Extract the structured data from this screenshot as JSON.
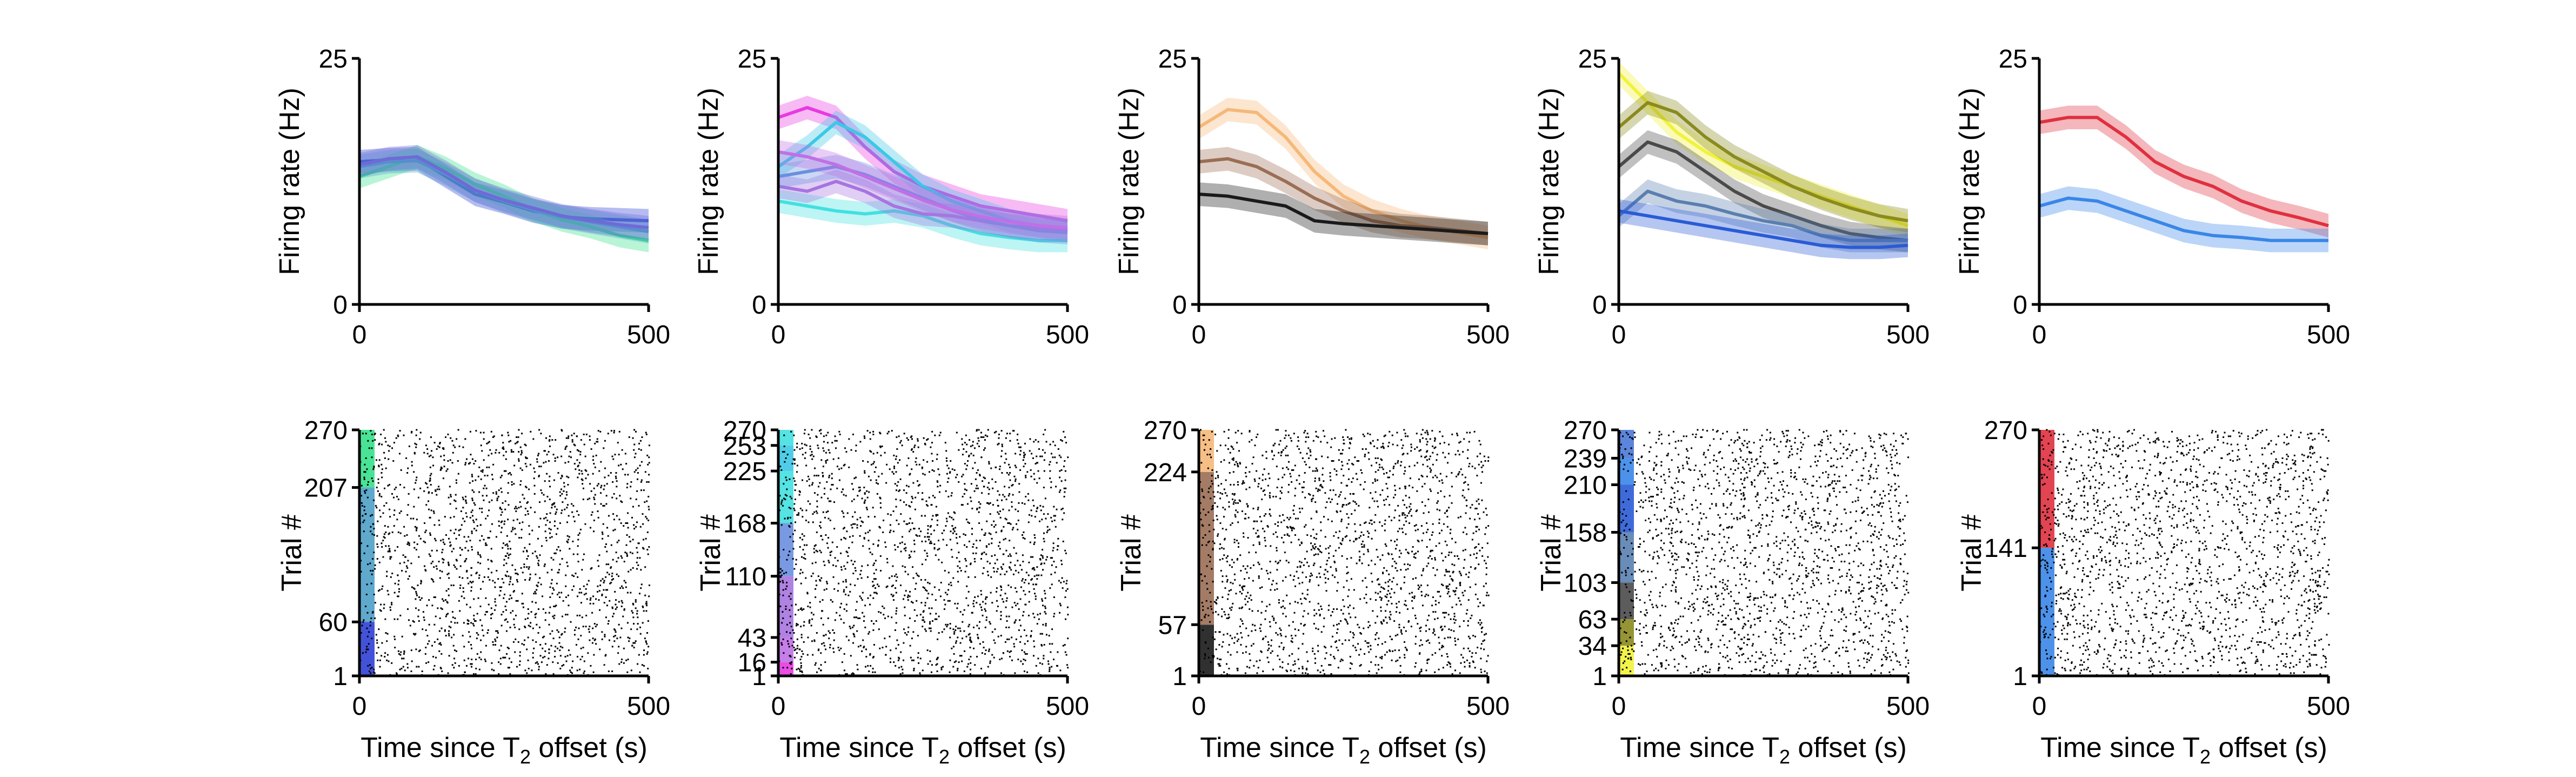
{
  "figure": {
    "background": "#ffffff",
    "axis_color": "#000000",
    "raster_color": "#000000"
  },
  "chart_data": [
    {
      "type": "line",
      "panel": "rate-1",
      "ylabel": "Firing rate (Hz)",
      "xlim": [
        0,
        500
      ],
      "ylim": [
        0,
        25
      ],
      "x_ticks": [
        "0",
        "500"
      ],
      "y_ticks": [
        "0",
        "25"
      ],
      "x": [
        0,
        50,
        100,
        150,
        200,
        250,
        300,
        350,
        400,
        450,
        500
      ],
      "series": [
        {
          "color": "#2f3fd6",
          "values": [
            14.5,
            14.7,
            14.8,
            13.0,
            11.2,
            10.4,
            9.5,
            8.9,
            8.7,
            8.6,
            8.5
          ]
        },
        {
          "color": "#35e08a",
          "values": [
            13.0,
            14.0,
            15.0,
            13.8,
            12.2,
            11.0,
            9.6,
            8.6,
            7.9,
            7.0,
            6.5
          ]
        },
        {
          "color": "#4ea0c8",
          "values": [
            14.0,
            14.5,
            14.6,
            13.2,
            11.6,
            10.5,
            9.6,
            8.9,
            8.4,
            7.9,
            7.4
          ]
        },
        {
          "color": "#6f6ad8",
          "values": [
            14.2,
            14.8,
            15.0,
            13.4,
            11.6,
            10.6,
            9.8,
            9.0,
            8.5,
            8.1,
            7.8
          ]
        }
      ]
    },
    {
      "type": "line",
      "panel": "rate-2",
      "ylabel": "Firing rate (Hz)",
      "xlim": [
        0,
        500
      ],
      "ylim": [
        0,
        25
      ],
      "x_ticks": [
        "0",
        "500"
      ],
      "y_ticks": [
        "0",
        "25"
      ],
      "x": [
        0,
        50,
        100,
        150,
        200,
        250,
        300,
        350,
        400,
        450,
        500
      ],
      "series": [
        {
          "color": "#e83ae0",
          "values": [
            19.0,
            20.0,
            19.0,
            16.0,
            13.5,
            12.0,
            11.0,
            10.0,
            9.5,
            9.0,
            8.5
          ]
        },
        {
          "color": "#3cc8e6",
          "values": [
            14.0,
            16.0,
            18.5,
            17.0,
            14.5,
            12.0,
            10.5,
            9.5,
            8.5,
            8.0,
            7.5
          ]
        },
        {
          "color": "#42e0e0",
          "values": [
            10.5,
            10.0,
            9.5,
            9.2,
            9.5,
            9.0,
            8.0,
            7.2,
            6.8,
            6.5,
            6.5
          ]
        },
        {
          "color": "#a674e0",
          "values": [
            12.0,
            11.5,
            12.5,
            11.5,
            10.0,
            9.2,
            9.0,
            8.5,
            8.0,
            7.8,
            7.5
          ]
        },
        {
          "color": "#6a8fe0",
          "values": [
            13.0,
            13.5,
            14.0,
            13.2,
            12.0,
            10.8,
            9.6,
            8.6,
            8.0,
            7.5,
            7.3
          ]
        },
        {
          "color": "#c070e6",
          "values": [
            15.5,
            15.0,
            14.2,
            13.0,
            11.8,
            10.6,
            9.6,
            8.9,
            8.4,
            8.0,
            7.8
          ]
        }
      ]
    },
    {
      "type": "line",
      "panel": "rate-3",
      "ylabel": "Firing rate (Hz)",
      "xlim": [
        0,
        500
      ],
      "ylim": [
        0,
        25
      ],
      "x_ticks": [
        "0",
        "500"
      ],
      "y_ticks": [
        "0",
        "25"
      ],
      "x": [
        0,
        50,
        100,
        150,
        200,
        250,
        300,
        350,
        400,
        450,
        500
      ],
      "series": [
        {
          "color": "#f5b879",
          "values": [
            18.0,
            19.8,
            19.5,
            17.0,
            13.5,
            11.0,
            9.5,
            8.5,
            7.8,
            7.3,
            6.8
          ]
        },
        {
          "color": "#9a6e55",
          "values": [
            14.5,
            14.8,
            14.0,
            12.5,
            10.8,
            9.5,
            8.5,
            8.0,
            7.8,
            7.5,
            7.2
          ]
        },
        {
          "color": "#1a1a1a",
          "values": [
            11.2,
            11.0,
            10.5,
            10.0,
            8.5,
            8.2,
            8.0,
            7.8,
            7.6,
            7.4,
            7.2
          ]
        }
      ]
    },
    {
      "type": "line",
      "panel": "rate-4",
      "ylabel": "Firing rate (Hz)",
      "xlim": [
        0,
        500
      ],
      "ylim": [
        0,
        25
      ],
      "x_ticks": [
        "0",
        "500"
      ],
      "y_ticks": [
        "0",
        "25"
      ],
      "x": [
        0,
        50,
        100,
        150,
        200,
        250,
        300,
        350,
        400,
        450,
        500
      ],
      "series": [
        {
          "color": "#f2f23a",
          "values": [
            23.5,
            20.5,
            17.5,
            15.5,
            14.0,
            13.0,
            12.0,
            11.0,
            10.0,
            9.0,
            8.0
          ]
        },
        {
          "color": "#8a8a20",
          "values": [
            18.0,
            20.5,
            19.5,
            17.0,
            15.0,
            13.5,
            12.0,
            10.8,
            9.8,
            9.0,
            8.5
          ]
        },
        {
          "color": "#4a4a4a",
          "values": [
            14.0,
            16.5,
            15.5,
            13.5,
            11.5,
            10.0,
            9.0,
            8.0,
            7.2,
            6.8,
            6.5
          ]
        },
        {
          "color": "#5a7fb0",
          "values": [
            9.0,
            11.5,
            10.5,
            10.0,
            9.2,
            8.5,
            8.0,
            7.0,
            6.5,
            6.5,
            6.5
          ]
        },
        {
          "color": "#2a5bd6",
          "values": [
            9.5,
            9.0,
            8.5,
            8.0,
            7.5,
            7.0,
            6.5,
            6.0,
            5.8,
            5.8,
            6.0
          ]
        }
      ]
    },
    {
      "type": "line",
      "panel": "rate-5",
      "ylabel": "Firing rate (Hz)",
      "xlim": [
        0,
        500
      ],
      "ylim": [
        0,
        25
      ],
      "x_ticks": [
        "0",
        "500"
      ],
      "y_ticks": [
        "0",
        "25"
      ],
      "x": [
        0,
        50,
        100,
        150,
        200,
        250,
        300,
        350,
        400,
        450,
        500
      ],
      "series": [
        {
          "color": "#e0303f",
          "values": [
            18.5,
            19.0,
            19.0,
            17.0,
            14.5,
            13.0,
            12.0,
            10.5,
            9.5,
            8.8,
            8.0
          ]
        },
        {
          "color": "#3a86e8",
          "values": [
            10.0,
            10.8,
            10.5,
            9.5,
            8.5,
            7.5,
            7.0,
            6.8,
            6.5,
            6.5,
            6.5
          ]
        }
      ]
    },
    {
      "type": "raster",
      "panel": "raster-1",
      "xlabel_main": "Time since T",
      "xlabel_sub": "2",
      "xlabel_tail": " offset (s)",
      "ylabel": "Trial #",
      "xlim": [
        0,
        500
      ],
      "ylim": [
        1,
        270
      ],
      "x_ticks": [
        "0",
        "500"
      ],
      "y_ticks": [
        "1",
        "60",
        "207",
        "270"
      ],
      "n_trials": 270,
      "spikes_per_trial": 7,
      "seed": 11,
      "trial_bands": [
        {
          "from": 1,
          "to": 60,
          "color": "#2f3fd6"
        },
        {
          "from": 60,
          "to": 207,
          "color": "#4ea0c8"
        },
        {
          "from": 207,
          "to": 270,
          "color": "#35e08a"
        }
      ]
    },
    {
      "type": "raster",
      "panel": "raster-2",
      "xlabel_main": "Time since T",
      "xlabel_sub": "2",
      "xlabel_tail": " offset (s)",
      "ylabel": "Trial #",
      "xlim": [
        0,
        500
      ],
      "ylim": [
        1,
        270
      ],
      "x_ticks": [
        "0",
        "500"
      ],
      "y_ticks": [
        "1",
        "16",
        "43",
        "110",
        "168",
        "225",
        "253",
        "270"
      ],
      "n_trials": 270,
      "spikes_per_trial": 7,
      "seed": 23,
      "trial_bands": [
        {
          "from": 1,
          "to": 16,
          "color": "#e83ae0"
        },
        {
          "from": 16,
          "to": 43,
          "color": "#c070e6"
        },
        {
          "from": 43,
          "to": 110,
          "color": "#a674e0"
        },
        {
          "from": 110,
          "to": 168,
          "color": "#6a8fe0"
        },
        {
          "from": 168,
          "to": 225,
          "color": "#42e0e0"
        },
        {
          "from": 225,
          "to": 253,
          "color": "#3cc8e6"
        },
        {
          "from": 253,
          "to": 270,
          "color": "#42e0e0"
        }
      ]
    },
    {
      "type": "raster",
      "panel": "raster-3",
      "xlabel_main": "Time since T",
      "xlabel_sub": "2",
      "xlabel_tail": " offset (s)",
      "ylabel": "Trial #",
      "xlim": [
        0,
        500
      ],
      "ylim": [
        1,
        270
      ],
      "x_ticks": [
        "0",
        "500"
      ],
      "y_ticks": [
        "1",
        "57",
        "224",
        "270"
      ],
      "n_trials": 270,
      "spikes_per_trial": 7,
      "seed": 37,
      "trial_bands": [
        {
          "from": 1,
          "to": 57,
          "color": "#1a1a1a"
        },
        {
          "from": 57,
          "to": 224,
          "color": "#9a6e55"
        },
        {
          "from": 224,
          "to": 270,
          "color": "#f5b879"
        }
      ]
    },
    {
      "type": "raster",
      "panel": "raster-4",
      "xlabel_main": "Time since T",
      "xlabel_sub": "2",
      "xlabel_tail": " offset (s)",
      "ylabel": "Trial #",
      "xlim": [
        0,
        500
      ],
      "ylim": [
        1,
        270
      ],
      "x_ticks": [
        "0",
        "500"
      ],
      "y_ticks": [
        "1",
        "34",
        "63",
        "103",
        "158",
        "210",
        "239",
        "270"
      ],
      "n_trials": 270,
      "spikes_per_trial": 7,
      "seed": 51,
      "trial_bands": [
        {
          "from": 1,
          "to": 34,
          "color": "#f2f23a"
        },
        {
          "from": 34,
          "to": 63,
          "color": "#8a8a20"
        },
        {
          "from": 63,
          "to": 103,
          "color": "#4a4a4a"
        },
        {
          "from": 103,
          "to": 158,
          "color": "#5a7fb0"
        },
        {
          "from": 158,
          "to": 210,
          "color": "#2a5bd6"
        },
        {
          "from": 210,
          "to": 239,
          "color": "#3a86e8"
        },
        {
          "from": 239,
          "to": 270,
          "color": "#4a78d8"
        }
      ]
    },
    {
      "type": "raster",
      "panel": "raster-5",
      "xlabel_main": "Time since T",
      "xlabel_sub": "2",
      "xlabel_tail": " offset (s)",
      "ylabel": "Trial #",
      "xlim": [
        0,
        500
      ],
      "ylim": [
        1,
        270
      ],
      "x_ticks": [
        "0",
        "500"
      ],
      "y_ticks": [
        "1",
        "141",
        "270"
      ],
      "n_trials": 270,
      "spikes_per_trial": 7,
      "seed": 67,
      "trial_bands": [
        {
          "from": 1,
          "to": 141,
          "color": "#3a86e8"
        },
        {
          "from": 141,
          "to": 270,
          "color": "#e0303f"
        }
      ]
    }
  ]
}
